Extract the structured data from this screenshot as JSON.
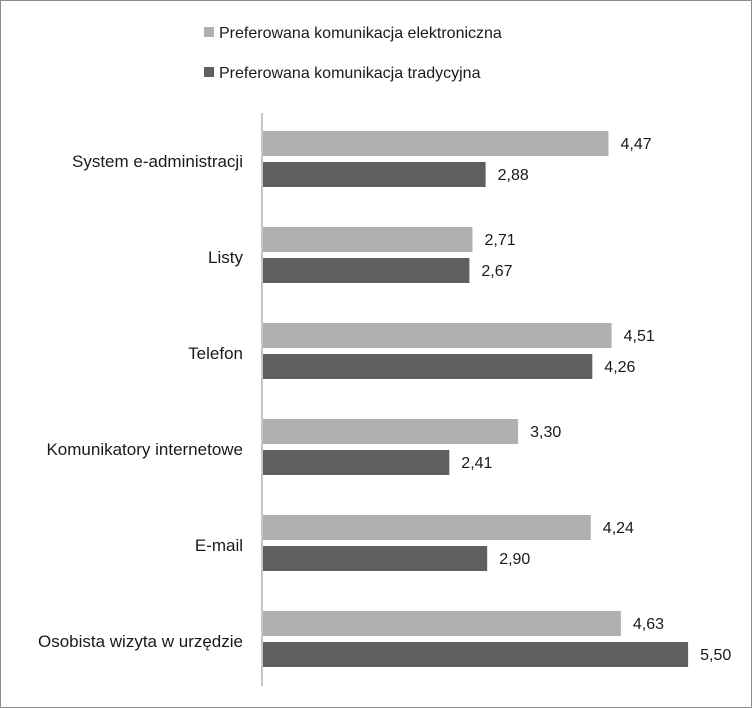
{
  "chart_data": {
    "type": "bar",
    "orientation": "horizontal",
    "categories": [
      "System e-administracji",
      "Listy",
      "Telefon",
      "Komunikatory internetowe",
      "E-mail",
      "Osobista wizyta w urzędzie"
    ],
    "series": [
      {
        "name": "Preferowana komunikacja elektroniczna",
        "color": "#b0b0b0",
        "values": [
          4.47,
          2.71,
          4.51,
          3.3,
          4.24,
          4.63
        ],
        "labels": [
          "4,47",
          "2,71",
          "4,51",
          "3,30",
          "4,24",
          "4,63"
        ]
      },
      {
        "name": "Preferowana komunikacja tradycyjna",
        "color": "#5f5f5f",
        "values": [
          2.88,
          2.67,
          4.26,
          2.41,
          2.9,
          5.5
        ],
        "labels": [
          "2,88",
          "2,67",
          "4,26",
          "2,41",
          "2,90",
          "5,50"
        ]
      }
    ],
    "title": "",
    "xlabel": "",
    "ylabel": "",
    "xlim": [
      0,
      5.65
    ],
    "grid": false,
    "legend_position": "top"
  }
}
